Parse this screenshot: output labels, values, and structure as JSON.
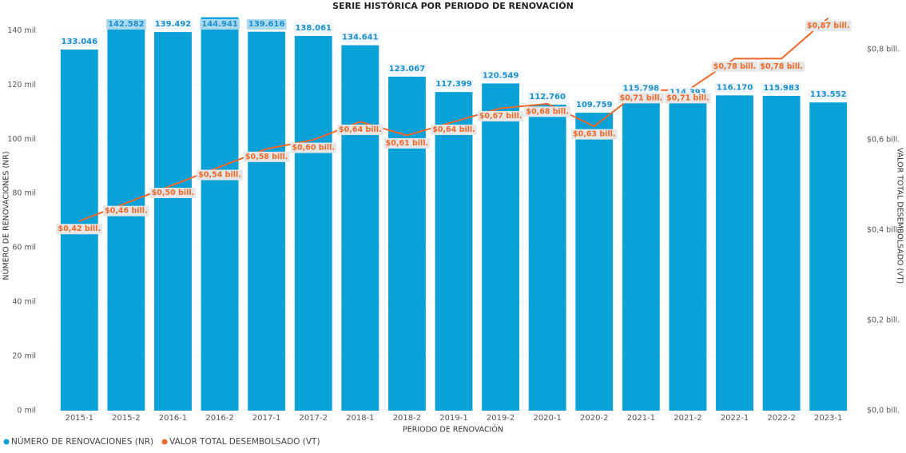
{
  "chart_data": {
    "type": "bar",
    "title": "SERIE HISTÓRICA POR PERIODO DE RENOVACIÓN",
    "x_label": "PERIODO DE RENOVACIÓN",
    "y_label": "NÚMERO DE RENOVACIONES (NR)",
    "y2_label": "VALOR TOTAL DESEMBOLSADO (VT)",
    "categories": [
      "2015-1",
      "2015-2",
      "2016-1",
      "2016-2",
      "2017-1",
      "2017-2",
      "2018-1",
      "2018-2",
      "2019-1",
      "2019-2",
      "2020-1",
      "2020-2",
      "2021-1",
      "2021-2",
      "2022-1",
      "2022-2",
      "2023-1"
    ],
    "series": [
      {
        "name": "NÚMERO DE RENOVACIONES (NR)",
        "color": "#0aa0d8",
        "type": "bar",
        "values": [
          133046,
          142582,
          139492,
          144941,
          139616,
          138061,
          134641,
          123067,
          117399,
          120549,
          112760,
          109759,
          115798,
          114393,
          116170,
          115983,
          113552
        ],
        "value_labels": [
          "133.046",
          "142.582",
          "139.492",
          "144.941",
          "139.616",
          "138.061",
          "134.641",
          "123.067",
          "117.399",
          "120.549",
          "112.760",
          "109.759",
          "115.798",
          "114.393",
          "116.170",
          "115.983",
          "113.552"
        ]
      },
      {
        "name": "VALOR TOTAL DESEMBOLSADO (VT)",
        "color": "#f0692a",
        "type": "line",
        "axis": "y2",
        "values": [
          0.42,
          0.46,
          0.5,
          0.54,
          0.58,
          0.6,
          0.64,
          0.61,
          0.64,
          0.67,
          0.68,
          0.63,
          0.71,
          0.71,
          0.78,
          0.78,
          0.87
        ],
        "value_labels": [
          "$0,42 bill.",
          "$0,46 bill.",
          "$0,50 bill.",
          "$0,54 bill.",
          "$0,58 bill.",
          "$0,60 bill.",
          "$0,64 bill.",
          "$0,61 bill.",
          "$0,64 bill.",
          "$0,67 bill.",
          "$0,68 bill.",
          "$0,63 bill.",
          "$0,71 bill.",
          "$0,71 bill.",
          "$0,78 bill.",
          "$0,78 bill.",
          "$0,87 bill."
        ]
      }
    ],
    "ylim": [
      0,
      146000
    ],
    "yticks": [
      {
        "value": 0,
        "label": "0 mil"
      },
      {
        "value": 20000,
        "label": "20 mil"
      },
      {
        "value": 40000,
        "label": "40 mil"
      },
      {
        "value": 60000,
        "label": "60 mil"
      },
      {
        "value": 80000,
        "label": "80 mil"
      },
      {
        "value": 100000,
        "label": "100 mil"
      },
      {
        "value": 120000,
        "label": "120 mil"
      },
      {
        "value": 140000,
        "label": "140 mil"
      }
    ],
    "y2lim": [
      0,
      0.878
    ],
    "y2ticks": [
      {
        "value": 0,
        "label": "$0,0 bill."
      },
      {
        "value": 0.2,
        "label": "$0,2 bill."
      },
      {
        "value": 0.4,
        "label": "$0,4 bill."
      },
      {
        "value": 0.6,
        "label": "$0,6 bill."
      },
      {
        "value": 0.8,
        "label": "$0,8 bill."
      }
    ],
    "grid": true,
    "legend": "bottom-left"
  }
}
